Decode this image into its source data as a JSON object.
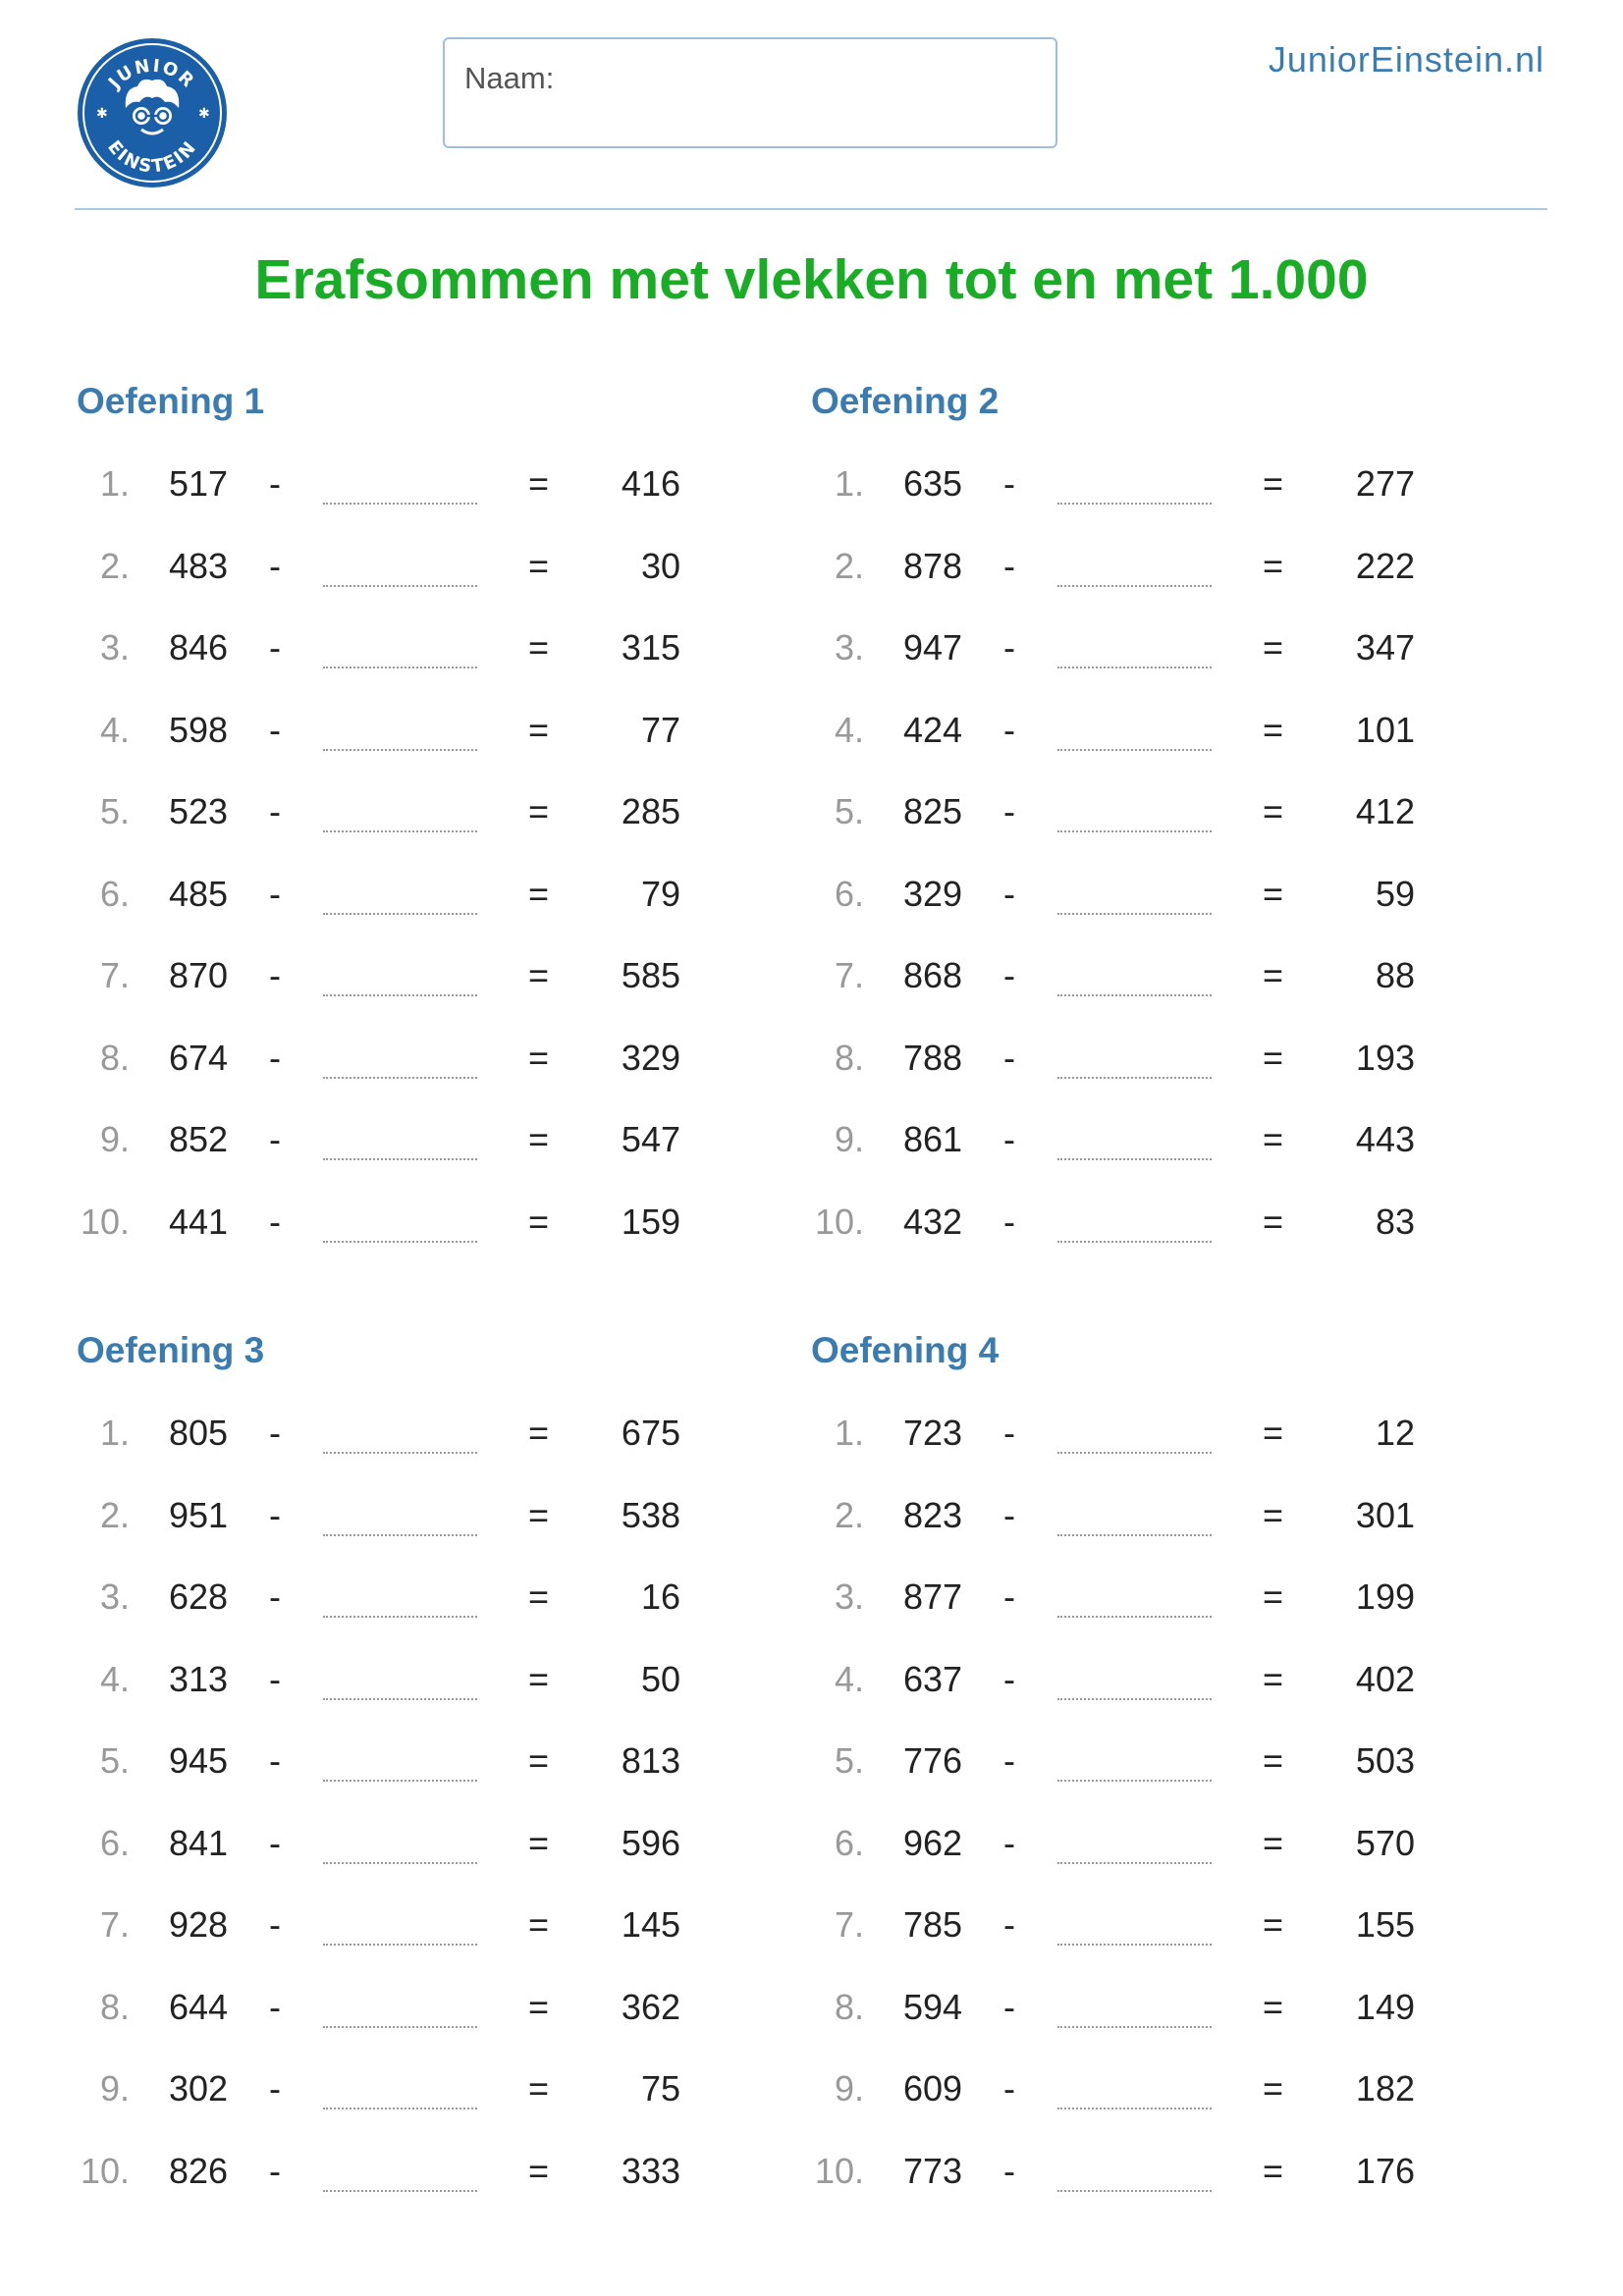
{
  "header": {
    "name_label": "Naam:",
    "site": "JuniorEinstein.nl",
    "logo_text_top": "JUNIOR",
    "logo_text_bottom": "EINSTEIN"
  },
  "title": "Erafsommen met vlekken tot en met 1.000",
  "exercises": [
    {
      "title": "Oefening 1",
      "items": [
        {
          "n": "1.",
          "a": "517",
          "op": "-",
          "eq": "=",
          "r": "416"
        },
        {
          "n": "2.",
          "a": "483",
          "op": "-",
          "eq": "=",
          "r": "30"
        },
        {
          "n": "3.",
          "a": "846",
          "op": "-",
          "eq": "=",
          "r": "315"
        },
        {
          "n": "4.",
          "a": "598",
          "op": "-",
          "eq": "=",
          "r": "77"
        },
        {
          "n": "5.",
          "a": "523",
          "op": "-",
          "eq": "=",
          "r": "285"
        },
        {
          "n": "6.",
          "a": "485",
          "op": "-",
          "eq": "=",
          "r": "79"
        },
        {
          "n": "7.",
          "a": "870",
          "op": "-",
          "eq": "=",
          "r": "585"
        },
        {
          "n": "8.",
          "a": "674",
          "op": "-",
          "eq": "=",
          "r": "329"
        },
        {
          "n": "9.",
          "a": "852",
          "op": "-",
          "eq": "=",
          "r": "547"
        },
        {
          "n": "10.",
          "a": "441",
          "op": "-",
          "eq": "=",
          "r": "159"
        }
      ]
    },
    {
      "title": "Oefening 2",
      "items": [
        {
          "n": "1.",
          "a": "635",
          "op": "-",
          "eq": "=",
          "r": "277"
        },
        {
          "n": "2.",
          "a": "878",
          "op": "-",
          "eq": "=",
          "r": "222"
        },
        {
          "n": "3.",
          "a": "947",
          "op": "-",
          "eq": "=",
          "r": "347"
        },
        {
          "n": "4.",
          "a": "424",
          "op": "-",
          "eq": "=",
          "r": "101"
        },
        {
          "n": "5.",
          "a": "825",
          "op": "-",
          "eq": "=",
          "r": "412"
        },
        {
          "n": "6.",
          "a": "329",
          "op": "-",
          "eq": "=",
          "r": "59"
        },
        {
          "n": "7.",
          "a": "868",
          "op": "-",
          "eq": "=",
          "r": "88"
        },
        {
          "n": "8.",
          "a": "788",
          "op": "-",
          "eq": "=",
          "r": "193"
        },
        {
          "n": "9.",
          "a": "861",
          "op": "-",
          "eq": "=",
          "r": "443"
        },
        {
          "n": "10.",
          "a": "432",
          "op": "-",
          "eq": "=",
          "r": "83"
        }
      ]
    },
    {
      "title": "Oefening 3",
      "items": [
        {
          "n": "1.",
          "a": "805",
          "op": "-",
          "eq": "=",
          "r": "675"
        },
        {
          "n": "2.",
          "a": "951",
          "op": "-",
          "eq": "=",
          "r": "538"
        },
        {
          "n": "3.",
          "a": "628",
          "op": "-",
          "eq": "=",
          "r": "16"
        },
        {
          "n": "4.",
          "a": "313",
          "op": "-",
          "eq": "=",
          "r": "50"
        },
        {
          "n": "5.",
          "a": "945",
          "op": "-",
          "eq": "=",
          "r": "813"
        },
        {
          "n": "6.",
          "a": "841",
          "op": "-",
          "eq": "=",
          "r": "596"
        },
        {
          "n": "7.",
          "a": "928",
          "op": "-",
          "eq": "=",
          "r": "145"
        },
        {
          "n": "8.",
          "a": "644",
          "op": "-",
          "eq": "=",
          "r": "362"
        },
        {
          "n": "9.",
          "a": "302",
          "op": "-",
          "eq": "=",
          "r": "75"
        },
        {
          "n": "10.",
          "a": "826",
          "op": "-",
          "eq": "=",
          "r": "333"
        }
      ]
    },
    {
      "title": "Oefening 4",
      "items": [
        {
          "n": "1.",
          "a": "723",
          "op": "-",
          "eq": "=",
          "r": "12"
        },
        {
          "n": "2.",
          "a": "823",
          "op": "-",
          "eq": "=",
          "r": "301"
        },
        {
          "n": "3.",
          "a": "877",
          "op": "-",
          "eq": "=",
          "r": "199"
        },
        {
          "n": "4.",
          "a": "637",
          "op": "-",
          "eq": "=",
          "r": "402"
        },
        {
          "n": "5.",
          "a": "776",
          "op": "-",
          "eq": "=",
          "r": "503"
        },
        {
          "n": "6.",
          "a": "962",
          "op": "-",
          "eq": "=",
          "r": "570"
        },
        {
          "n": "7.",
          "a": "785",
          "op": "-",
          "eq": "=",
          "r": "155"
        },
        {
          "n": "8.",
          "a": "594",
          "op": "-",
          "eq": "=",
          "r": "149"
        },
        {
          "n": "9.",
          "a": "609",
          "op": "-",
          "eq": "=",
          "r": "182"
        },
        {
          "n": "10.",
          "a": "773",
          "op": "-",
          "eq": "=",
          "r": "176"
        }
      ]
    }
  ]
}
